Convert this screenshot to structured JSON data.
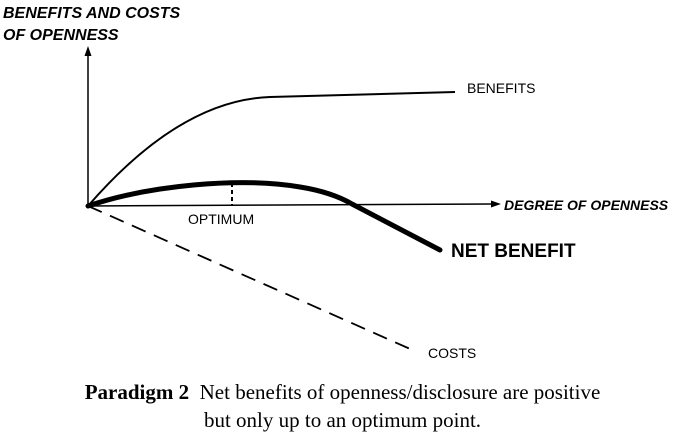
{
  "diagram": {
    "y_axis_label_line1": "BENEFITS AND COSTS",
    "y_axis_label_line2": "OF OPENNESS",
    "x_axis_label": "DEGREE OF OPENNESS",
    "benefits_label": "BENEFITS",
    "costs_label": "COSTS",
    "net_benefit_label": "NET BENEFIT",
    "optimum_label": "OPTIMUM"
  },
  "caption": {
    "prefix": "Paradigm 2",
    "line1": "Net benefits of openness/disclosure are positive",
    "line2": "but only up to an optimum point."
  }
}
